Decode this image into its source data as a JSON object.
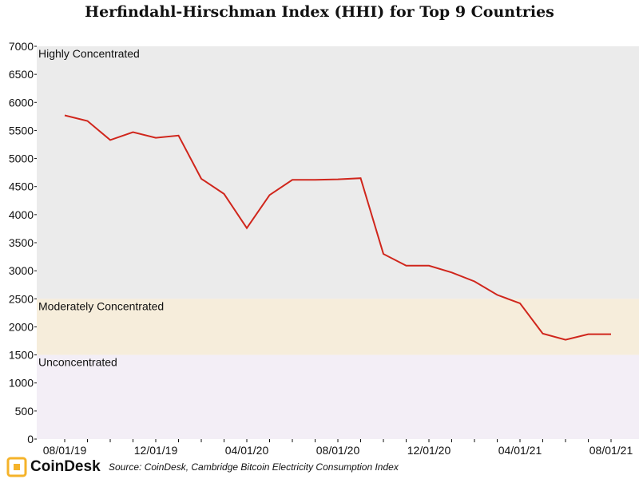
{
  "chart_data": {
    "type": "line",
    "title": "Herfindahl-Hirschman Index (HHI) for Top 9 Countries",
    "xlabel": "",
    "ylabel": "",
    "ylim": [
      0,
      7000
    ],
    "yticks": [
      0,
      500,
      1000,
      1500,
      2000,
      2500,
      3000,
      3500,
      4000,
      4500,
      5000,
      5500,
      6000,
      6500,
      7000
    ],
    "x_tick_labels": [
      "08/01/19",
      "12/01/19",
      "04/01/20",
      "08/01/20",
      "12/01/20",
      "04/01/21",
      "08/01/21"
    ],
    "x": [
      "2019-08",
      "2019-09",
      "2019-10",
      "2019-11",
      "2019-12",
      "2020-01",
      "2020-02",
      "2020-03",
      "2020-04",
      "2020-05",
      "2020-06",
      "2020-07",
      "2020-08",
      "2020-09",
      "2020-10",
      "2020-11",
      "2020-12",
      "2021-01",
      "2021-02",
      "2021-03",
      "2021-04",
      "2021-05",
      "2021-06",
      "2021-07",
      "2021-08"
    ],
    "series": [
      {
        "name": "",
        "color": "#d0261c",
        "values": [
          5770,
          5670,
          5330,
          5470,
          5370,
          5410,
          4640,
          4370,
          3760,
          4350,
          4620,
          4620,
          4630,
          4650,
          3300,
          3090,
          3090,
          2970,
          2810,
          2570,
          2420,
          1880,
          1770,
          1870,
          1870
        ]
      }
    ],
    "bands": [
      {
        "label": "Highly Concentrated",
        "from": 2500,
        "to": 7000,
        "color": "#ebebeb"
      },
      {
        "label": "Moderately Concentrated",
        "from": 1500,
        "to": 2500,
        "color": "#f6eddb"
      },
      {
        "label": "Unconcentrated",
        "from": 0,
        "to": 1500,
        "color": "#f3eef6"
      }
    ],
    "grid": false,
    "legend": "none"
  },
  "footer": {
    "logo_text": "CoinDesk",
    "source": "Source: CoinDesk, Cambridge Bitcoin Electricity Consumption Index"
  },
  "colors": {
    "logo_accent": "#f5b32a"
  }
}
